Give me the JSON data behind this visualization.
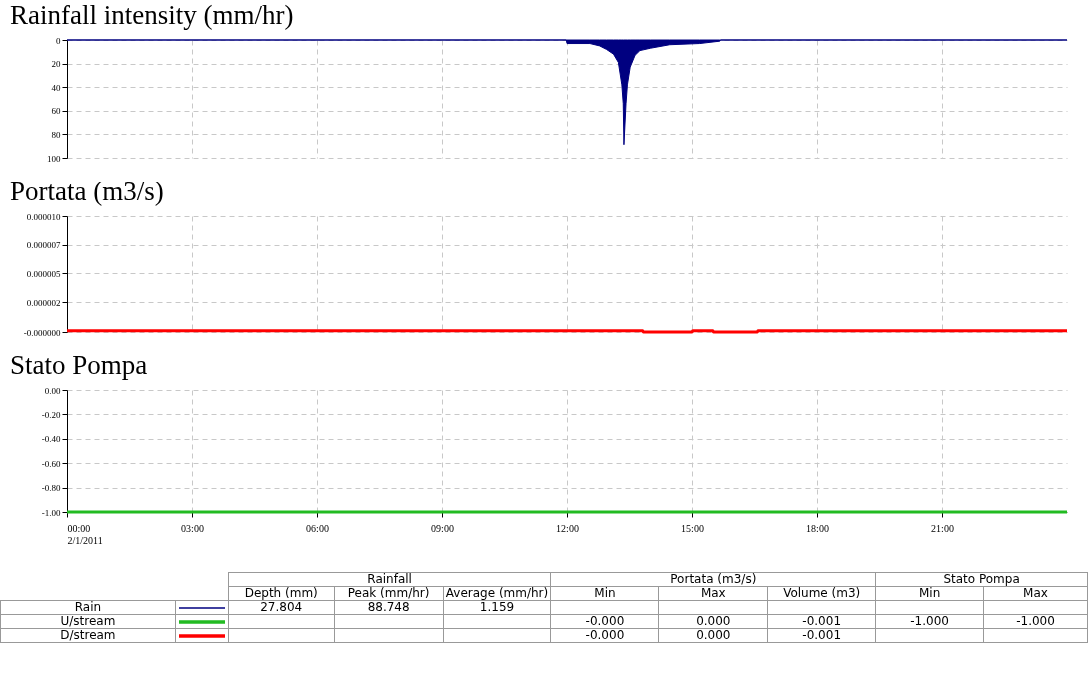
{
  "chart_data": [
    {
      "type": "area",
      "title": "Rainfall intensity (mm/hr)",
      "xlim": [
        "2011-02-01T00:00",
        "2011-02-02T00:00"
      ],
      "xticks": [
        "2011-02-01T00:00",
        "2011-02-01T03:00",
        "2011-02-01T06:00",
        "2011-02-01T09:00",
        "2011-02-01T12:00",
        "2011-02-01T15:00",
        "2011-02-01T18:00",
        "2011-02-01T21:00"
      ],
      "ylim": [
        100,
        0
      ],
      "yticks": [
        0,
        20,
        40,
        60,
        80,
        100
      ],
      "grid": true,
      "tick_labels": "y",
      "series": [
        {
          "name": "Rain",
          "color": "#000080",
          "x": [
            "2011-02-01T00:00",
            "2011-02-01T11:59",
            "2011-02-01T12:00",
            "2011-02-01T12:33",
            "2011-02-01T12:47",
            "2011-02-01T12:57",
            "2011-02-01T13:07",
            "2011-02-01T13:14",
            "2011-02-01T13:19",
            "2011-02-01T13:21",
            "2011-02-01T13:22",
            "2011-02-01T13:25",
            "2011-02-01T13:27",
            "2011-02-01T13:31",
            "2011-02-01T13:38",
            "2011-02-01T13:45",
            "2011-02-01T14:00",
            "2011-02-01T14:28",
            "2011-02-01T15:11",
            "2011-02-01T15:40",
            "2011-02-01T15:41",
            "2011-02-02T00:00"
          ],
          "values": [
            0,
            0,
            3,
            3,
            5,
            8,
            12,
            19,
            38,
            54,
            88.748,
            54,
            38,
            23,
            13,
            9,
            7,
            4,
            3,
            1,
            0,
            0
          ]
        }
      ]
    },
    {
      "type": "line",
      "title": "Portata (m3/s)",
      "xlim": [
        "2011-02-01T00:00",
        "2011-02-02T00:00"
      ],
      "xticks": [
        "2011-02-01T00:00",
        "2011-02-01T03:00",
        "2011-02-01T06:00",
        "2011-02-01T09:00",
        "2011-02-01T12:00",
        "2011-02-01T15:00",
        "2011-02-01T18:00",
        "2011-02-01T21:00"
      ],
      "ylim": [
        -1e-07,
        1e-05
      ],
      "yticks": [
        {
          "value": -1e-07,
          "label": "-0.000000"
        },
        {
          "value": 2.5e-06,
          "label": "0.000002"
        },
        {
          "value": 5e-06,
          "label": "0.000005"
        },
        {
          "value": 7.5e-06,
          "label": "0.000007"
        },
        {
          "value": 1e-05,
          "label": "0.000010"
        }
      ],
      "grid": true,
      "tick_labels": "y",
      "series": [
        {
          "name": "D/stream",
          "color": "#ff0000",
          "x": [
            "2011-02-01T00:00",
            "2011-02-01T13:49",
            "2011-02-01T13:50",
            "2011-02-01T15:00",
            "2011-02-01T15:01",
            "2011-02-01T15:30",
            "2011-02-01T15:31",
            "2011-02-01T16:34",
            "2011-02-01T16:35",
            "2011-02-02T00:00"
          ],
          "values": [
            0,
            0,
            -1e-07,
            -1e-07,
            0,
            0,
            -1e-07,
            -1e-07,
            0,
            0
          ]
        }
      ]
    },
    {
      "type": "line",
      "title": "Stato Pompa",
      "xlim": [
        "2011-02-01T00:00",
        "2011-02-02T00:00"
      ],
      "xticks": [
        {
          "value": "2011-02-01T00:00",
          "label": "00:00\n2/1/2011"
        },
        {
          "value": "2011-02-01T03:00",
          "label": "03:00"
        },
        {
          "value": "2011-02-01T06:00",
          "label": "06:00"
        },
        {
          "value": "2011-02-01T09:00",
          "label": "09:00"
        },
        {
          "value": "2011-02-01T12:00",
          "label": "12:00"
        },
        {
          "value": "2011-02-01T15:00",
          "label": "15:00"
        },
        {
          "value": "2011-02-01T18:00",
          "label": "18:00"
        },
        {
          "value": "2011-02-01T21:00",
          "label": "21:00"
        }
      ],
      "ylim": [
        -1,
        0
      ],
      "yticks": [
        {
          "value": 0,
          "label": "0.00"
        },
        {
          "value": -0.2,
          "label": "-0.20"
        },
        {
          "value": -0.4,
          "label": "-0.40"
        },
        {
          "value": -0.6,
          "label": "-0.60"
        },
        {
          "value": -0.8,
          "label": "-0.80"
        },
        {
          "value": -1,
          "label": "-1.00"
        }
      ],
      "grid": true,
      "series": [
        {
          "name": "U/stream",
          "color": "#22bb22",
          "x": [
            "2011-02-01T00:00",
            "2011-02-02T00:00"
          ],
          "values": [
            -1,
            -1
          ]
        }
      ]
    },
    {
      "type": "other",
      "annotations": [
        "Rainfall",
        "Portata (m3/s)",
        "Stato Pompa",
        "Depth (mm)",
        "Peak (mm/hr)",
        "Average (mm/hr)",
        "Min",
        "Max",
        "Volume (m3)",
        "Min",
        "Max",
        "27.804",
        "88.748",
        "1.159",
        "-0.000",
        "0.000",
        "-0.001",
        "-1.000",
        "-1.000",
        "-0.000",
        "0.000",
        "-0.001"
      ]
    }
  ]
}
